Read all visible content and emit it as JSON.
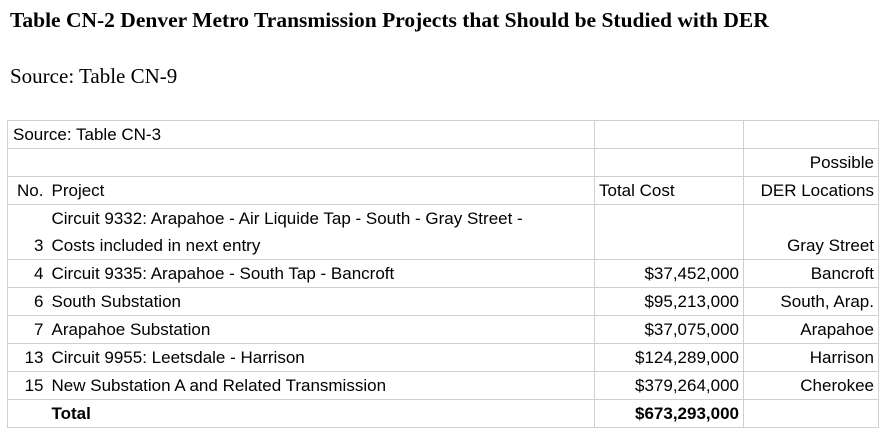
{
  "heading": "Table CN-2 Denver Metro Transmission Projects that Should be Studied with DER",
  "source_line": "Source:  Table CN-9",
  "table": {
    "source_note": "Source:  Table CN-3",
    "header_top": {
      "der": "Possible"
    },
    "header": {
      "no": "No.",
      "project": "Project",
      "cost": "Total Cost",
      "der": "DER Locations"
    },
    "multi_row": {
      "no": "3",
      "project_line1": "Circuit 9332: Arapahoe - Air Liquide Tap - South - Gray Street -",
      "project_line2": "Costs included in next entry",
      "cost": "",
      "der": "Gray Street"
    },
    "rows": [
      {
        "no": "4",
        "project": "Circuit 9335: Arapahoe - South Tap - Bancroft",
        "cost": "$37,452,000",
        "der": "Bancroft"
      },
      {
        "no": "6",
        "project": "South Substation",
        "cost": "$95,213,000",
        "der": "South, Arap."
      },
      {
        "no": "7",
        "project": "Arapahoe Substation",
        "cost": "$37,075,000",
        "der": "Arapahoe"
      },
      {
        "no": "13",
        "project": "Circuit 9955: Leetsdale - Harrison",
        "cost": "$124,289,000",
        "der": "Harrison"
      },
      {
        "no": "15",
        "project": "New Substation A and Related Transmission",
        "cost": "$379,264,000",
        "der": "Cherokee"
      }
    ],
    "total": {
      "label": "Total",
      "cost": "$673,293,000"
    }
  }
}
